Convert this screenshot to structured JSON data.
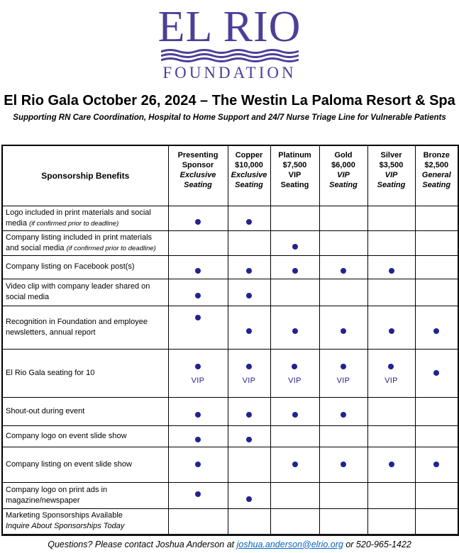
{
  "logo": {
    "wordmark": "EL RIO",
    "foundation": "FOUNDATION",
    "color": "#4c3f97"
  },
  "title": "El Rio Gala October 26, 2024 – The Westin La Paloma Resort & Spa",
  "subtitle": "Supporting RN Care Coordination, Hospital to Home Support and 24/7 Nurse Triage Line for Vulnerable Patients",
  "table": {
    "benefits_header": "Sponsorship Benefits",
    "vip_label": "VIP",
    "dot_color": "#232290",
    "columns": [
      {
        "name": "Presenting Sponsor",
        "price": "",
        "seating": "Exclusive\nSeating",
        "seating_italic": true
      },
      {
        "name": "Copper",
        "price": "$10,000",
        "seating": "Exclusive\nSeating",
        "seating_italic": true
      },
      {
        "name": "Platinum",
        "price": "$7,500",
        "seating": "VIP\nSeating",
        "seating_italic": false
      },
      {
        "name": "Gold",
        "price": "$6,000",
        "seating": "VIP\nSeating",
        "seating_italic": true
      },
      {
        "name": "Silver",
        "price": "$3,500",
        "seating": "VIP\nSeating",
        "seating_italic": true
      },
      {
        "name": "Bronze",
        "price": "$2,500",
        "seating": "General\nSeating",
        "seating_italic": true
      }
    ],
    "rows": [
      {
        "label": "Logo included in print materials and social media ",
        "note": "(if confirmed prior to deadline)",
        "cells": [
          "dl",
          "dl",
          "",
          "",
          "",
          ""
        ]
      },
      {
        "label": "Company listing included in print materials and social media ",
        "note": "(if confirmed prior to deadline)",
        "cells": [
          "",
          "",
          "dl",
          "",
          "",
          ""
        ]
      },
      {
        "label": "Company listing on Facebook post(s)",
        "cells": [
          "dl",
          "dl",
          "dl",
          "dl",
          "dl",
          ""
        ]
      },
      {
        "label": "Video clip with company leader shared on social media",
        "cells": [
          "dl",
          "dl",
          "",
          "",
          "",
          ""
        ]
      },
      {
        "label": "Recognition in Foundation and employee newsletters, annual report",
        "cells": [
          "dt",
          "dl",
          "dl",
          "dl",
          "dl",
          "dl"
        ]
      },
      {
        "label": "El Rio Gala seating for 10",
        "cells": [
          "dv",
          "dv",
          "dv",
          "dv",
          "dv",
          "d"
        ]
      },
      {
        "label": "Shout-out during event",
        "cells": [
          "dl",
          "dl",
          "dl",
          "dl",
          "",
          ""
        ]
      },
      {
        "label": "Company logo on event slide show",
        "cells": [
          "dl",
          "dl",
          "",
          "",
          "",
          ""
        ]
      },
      {
        "label": "Company listing on event slide show",
        "cells": [
          "d",
          "",
          "d",
          "d",
          "d",
          "d"
        ]
      },
      {
        "label": "Company logo on print ads in magazine/newspaper",
        "cells": [
          "dt",
          "dl",
          "",
          "",
          "",
          ""
        ]
      },
      {
        "label": "Marketing Sponsorships Available",
        "label2": "Inquire About Sponsorships Today",
        "cells": [
          "",
          "",
          "",
          "",
          "",
          ""
        ]
      }
    ]
  },
  "footer": {
    "prefix": "Questions? Please contact Joshua Anderson at ",
    "email": "joshua.anderson@elrio.org",
    "suffix": " or 520-965-1422",
    "link_color": "#0563c1"
  }
}
